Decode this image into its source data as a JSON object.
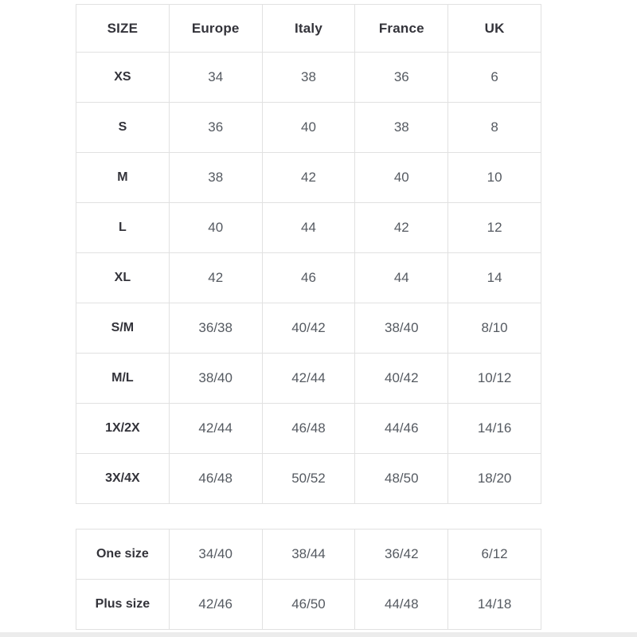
{
  "page": {
    "background": "#ffffff",
    "bottom_strip_color": "#ececec"
  },
  "colors": {
    "border": "#e1e1e1",
    "header_text": "#33333a",
    "body_text": "#555a61"
  },
  "size_table": {
    "columns": [
      "SIZE",
      "Europe",
      "Italy",
      "France",
      "UK"
    ],
    "rows": [
      {
        "label": "XS",
        "values": [
          "34",
          "38",
          "36",
          "6"
        ]
      },
      {
        "label": "S",
        "values": [
          "36",
          "40",
          "38",
          "8"
        ]
      },
      {
        "label": "M",
        "values": [
          "38",
          "42",
          "40",
          "10"
        ]
      },
      {
        "label": "L",
        "values": [
          "40",
          "44",
          "42",
          "12"
        ]
      },
      {
        "label": "XL",
        "values": [
          "42",
          "46",
          "44",
          "14"
        ]
      },
      {
        "label": "S/M",
        "values": [
          "36/38",
          "40/42",
          "38/40",
          "8/10"
        ]
      },
      {
        "label": "M/L",
        "values": [
          "38/40",
          "42/44",
          "40/42",
          "10/12"
        ]
      },
      {
        "label": "1X/2X",
        "values": [
          "42/44",
          "46/48",
          "44/46",
          "14/16"
        ]
      },
      {
        "label": "3X/4X",
        "values": [
          "46/48",
          "50/52",
          "48/50",
          "18/20"
        ]
      }
    ]
  },
  "special_sizes_table": {
    "rows": [
      {
        "label": "One size",
        "values": [
          "34/40",
          "38/44",
          "36/42",
          "6/12"
        ]
      },
      {
        "label": "Plus size",
        "values": [
          "42/46",
          "46/50",
          "44/48",
          "14/18"
        ]
      }
    ]
  }
}
